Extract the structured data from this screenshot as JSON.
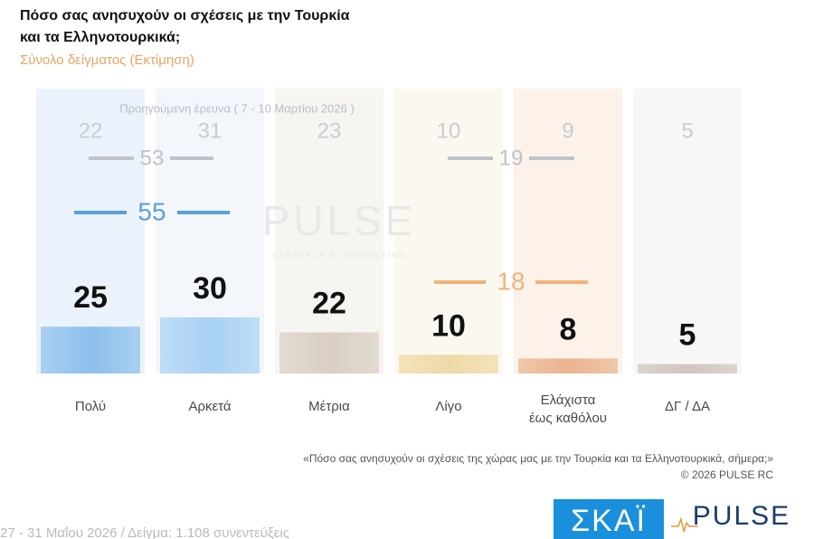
{
  "chart_data": {
    "type": "bar",
    "title": [
      "Πόσο σας ανησυχούν οι σχέσεις με την Τουρκία",
      "και τα Ελληνοτουρκικά;"
    ],
    "subtitle": "Σύνολο δείγματος (Εκτίμηση)",
    "categories": [
      "Πολύ",
      "Αρκετά",
      "Μέτρια",
      "Λίγο",
      "Ελάχιστα\nέως καθόλου",
      "ΔΓ / ΔΑ"
    ],
    "values": [
      25,
      30,
      22,
      10,
      8,
      5
    ],
    "colors": [
      "#8cc0ec",
      "#a9d1f3",
      "#d9cfc3",
      "#efd9a6",
      "#eab48e",
      "#cfc6bf"
    ],
    "previous": {
      "label": "Προηγούμενη έρευνα ( 7 - 10 Μαρτίου 2026 )",
      "values": [
        22,
        31,
        23,
        10,
        9,
        5
      ]
    },
    "totals": [
      {
        "previous": 53,
        "current": 55
      },
      {
        "previous": 19,
        "current": 18
      }
    ],
    "watermark": {
      "name": "PULSE",
      "tagline": "RESEARCH & CONSULTING"
    },
    "question": "«Πόσο σας ανησυχούν οι σχέσεις της χώρας μας με την Τουρκία και τα Ελληνοτουρκικά, σήμερα;»",
    "copyright": "©  2026  PULSE RC",
    "fieldwork": "27 - 31  Μαΐου 2026  /  Δείγμα:  1.108 συνεντεύξεις",
    "logos": [
      "ΣΚΑΪ",
      "PULSE"
    ]
  }
}
